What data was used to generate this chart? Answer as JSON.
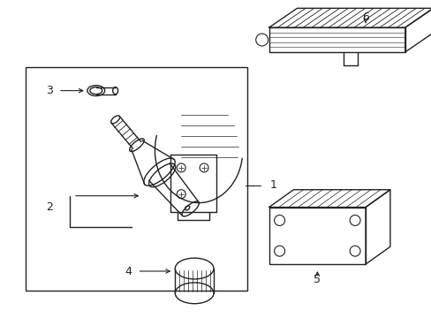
{
  "background_color": "#ffffff",
  "line_color": "#222222",
  "label_color": "#000000",
  "figsize": [
    4.89,
    3.6
  ],
  "dpi": 100
}
